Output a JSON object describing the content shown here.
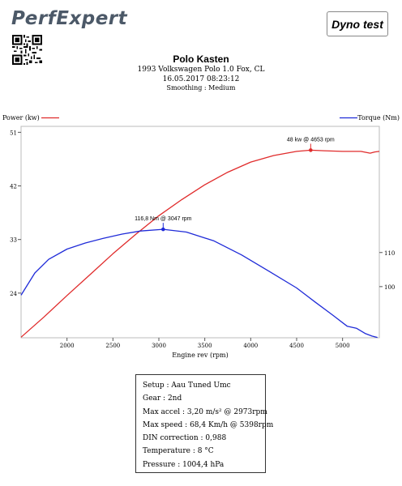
{
  "header": {
    "logo_text": "PerfExpert",
    "badge_label": "Dyno test"
  },
  "title": {
    "name": "Polo Kasten",
    "vehicle": "1993 Volkswagen Polo 1.0 Fox, CL",
    "datetime": "16.05.2017 08:23:12",
    "smoothing": "Smoothing : Medium"
  },
  "chart_data": {
    "type": "line",
    "xlabel": "Engine rev (rpm)",
    "x_ticks": [
      2000,
      2500,
      3000,
      3500,
      4000,
      4500,
      5000
    ],
    "xlim": [
      1500,
      5400
    ],
    "y_left_label": "Power (kw)",
    "y_left_ticks": [
      24,
      33,
      42,
      51
    ],
    "y_left_lim": [
      16.5,
      52
    ],
    "y_right_label": "Torque (Nm)",
    "y_right_ticks": [
      100,
      110
    ],
    "y_right_lim": [
      85,
      147
    ],
    "grid": false,
    "legend": "top-left and top-right, beside the axis labels",
    "colors": {
      "power": "#e02b2b",
      "torque": "#1f2bd8"
    },
    "series": [
      {
        "name": "Power (kw)",
        "axis": "left",
        "x": [
          1500,
          1750,
          2000,
          2250,
          2500,
          2750,
          3000,
          3250,
          3500,
          3750,
          4000,
          4250,
          4500,
          4653,
          4800,
          5000,
          5200,
          5300,
          5350,
          5400
        ],
        "y": [
          16.6,
          20.0,
          23.6,
          27.1,
          30.6,
          33.9,
          37.0,
          39.7,
          42.2,
          44.3,
          46.0,
          47.1,
          47.8,
          48.0,
          47.9,
          47.8,
          47.8,
          47.5,
          47.7,
          47.8
        ]
      },
      {
        "name": "Torque (Nm)",
        "axis": "right",
        "x": [
          1500,
          1650,
          1800,
          2000,
          2200,
          2400,
          2600,
          2800,
          3047,
          3300,
          3600,
          3900,
          4200,
          4500,
          4700,
          4900,
          5050,
          5150,
          5250,
          5320,
          5380
        ],
        "y": [
          97.5,
          104.0,
          108.0,
          111.0,
          112.8,
          114.2,
          115.4,
          116.3,
          116.8,
          116.0,
          113.4,
          109.3,
          104.5,
          99.6,
          95.5,
          91.5,
          88.4,
          87.8,
          86.2,
          85.5,
          85.1
        ]
      }
    ],
    "annotations": [
      {
        "series": "Power (kw)",
        "x": 4653,
        "y": 48,
        "label": "48 kw @ 4653 rpm"
      },
      {
        "series": "Torque (Nm)",
        "x": 3047,
        "y": 116.8,
        "label": "116,8 Nm @ 3047 rpm"
      }
    ]
  },
  "info": {
    "setup": "Setup : Aau Tuned Umc",
    "gear": "Gear : 2nd",
    "max_accel": "Max accel : 3,20 m/s² @ 2973rpm",
    "max_speed": "Max speed : 68,4 Km/h @ 5398rpm",
    "din": "DIN correction : 0,988",
    "temperature": "Temperature : 8 °C",
    "pressure": "Pressure : 1004,4 hPa"
  }
}
